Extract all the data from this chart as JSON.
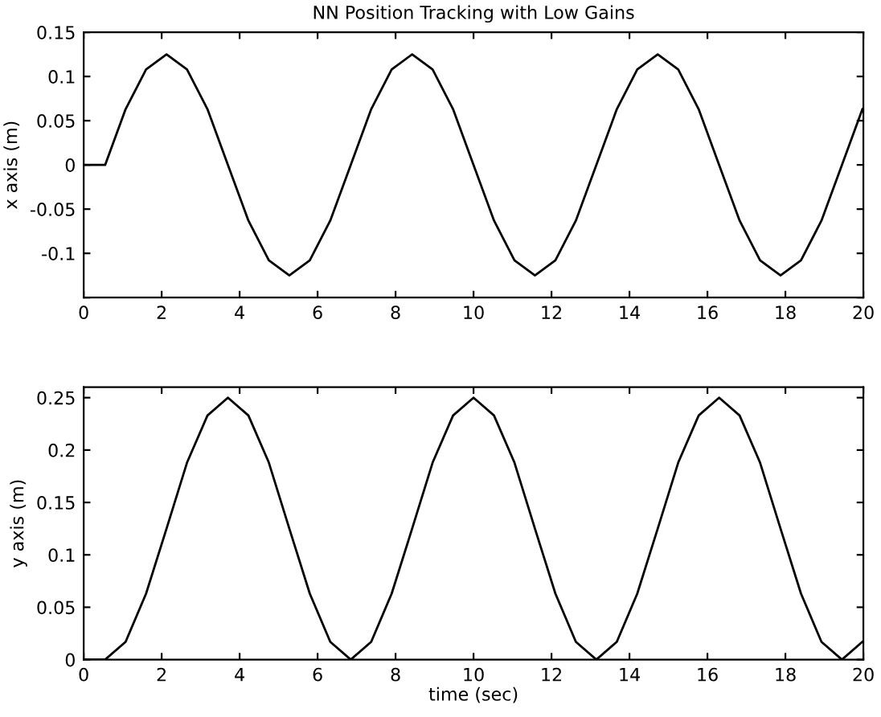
{
  "chart_data": [
    {
      "type": "line",
      "title": "NN Position Tracking with Low Gains",
      "ylabel": "x axis (m)",
      "xlim": [
        0,
        20
      ],
      "xticks": [
        0,
        2,
        4,
        6,
        8,
        10,
        12,
        14,
        16,
        18,
        20
      ],
      "ylim": [
        -0.15,
        0.15
      ],
      "yticks": [
        {
          "value": -0.15,
          "label": null
        },
        -0.1,
        -0.05,
        0,
        0.05,
        0.1,
        0.15
      ],
      "grid": false,
      "series": [
        {
          "color": "#000000",
          "x": [
            0,
            0.55,
            1.075,
            1.6,
            2.125,
            2.65,
            3.175,
            3.7,
            4.225,
            4.75,
            5.275,
            5.8,
            6.325,
            6.85,
            7.375,
            7.9,
            8.425,
            8.95,
            9.475,
            10.0,
            10.525,
            11.05,
            11.575,
            12.1,
            12.625,
            13.15,
            13.675,
            14.2,
            14.725,
            15.25,
            15.775,
            16.3,
            16.825,
            17.35,
            17.875,
            18.4,
            18.925,
            19.45,
            19.975
          ],
          "values": [
            0,
            0,
            0.063,
            0.108,
            0.125,
            0.108,
            0.063,
            0,
            -0.063,
            -0.108,
            -0.125,
            -0.108,
            -0.063,
            0,
            0.063,
            0.108,
            0.125,
            0.108,
            0.063,
            0,
            -0.063,
            -0.108,
            -0.125,
            -0.108,
            -0.063,
            0,
            0.063,
            0.108,
            0.125,
            0.108,
            0.063,
            0,
            -0.063,
            -0.108,
            -0.125,
            -0.108,
            -0.063,
            0,
            0.063
          ]
        }
      ]
    },
    {
      "type": "line",
      "xlabel": "time (sec)",
      "ylabel": "y axis (m)",
      "xlim": [
        0,
        20
      ],
      "xticks": [
        0,
        2,
        4,
        6,
        8,
        10,
        12,
        14,
        16,
        18,
        20
      ],
      "ylim": [
        0,
        0.26
      ],
      "yticks": [
        0,
        0.05,
        0.1,
        0.15,
        0.2,
        0.25
      ],
      "grid": false,
      "series": [
        {
          "color": "#000000",
          "x": [
            0,
            0.55,
            1.075,
            1.6,
            2.125,
            2.65,
            3.175,
            3.7,
            4.225,
            4.75,
            5.275,
            5.8,
            6.325,
            6.85,
            7.375,
            7.9,
            8.425,
            8.95,
            9.475,
            10.0,
            10.525,
            11.05,
            11.575,
            12.1,
            12.625,
            13.15,
            13.675,
            14.2,
            14.725,
            15.25,
            15.775,
            16.3,
            16.825,
            17.35,
            17.875,
            18.4,
            18.925,
            19.45,
            19.975
          ],
          "values": [
            0,
            0,
            0.017,
            0.063,
            0.125,
            0.188,
            0.233,
            0.25,
            0.233,
            0.188,
            0.125,
            0.063,
            0.017,
            0,
            0.017,
            0.063,
            0.125,
            0.188,
            0.233,
            0.25,
            0.233,
            0.188,
            0.125,
            0.063,
            0.017,
            0,
            0.017,
            0.063,
            0.125,
            0.188,
            0.233,
            0.25,
            0.233,
            0.188,
            0.125,
            0.063,
            0.017,
            0,
            0.017
          ]
        }
      ]
    }
  ]
}
